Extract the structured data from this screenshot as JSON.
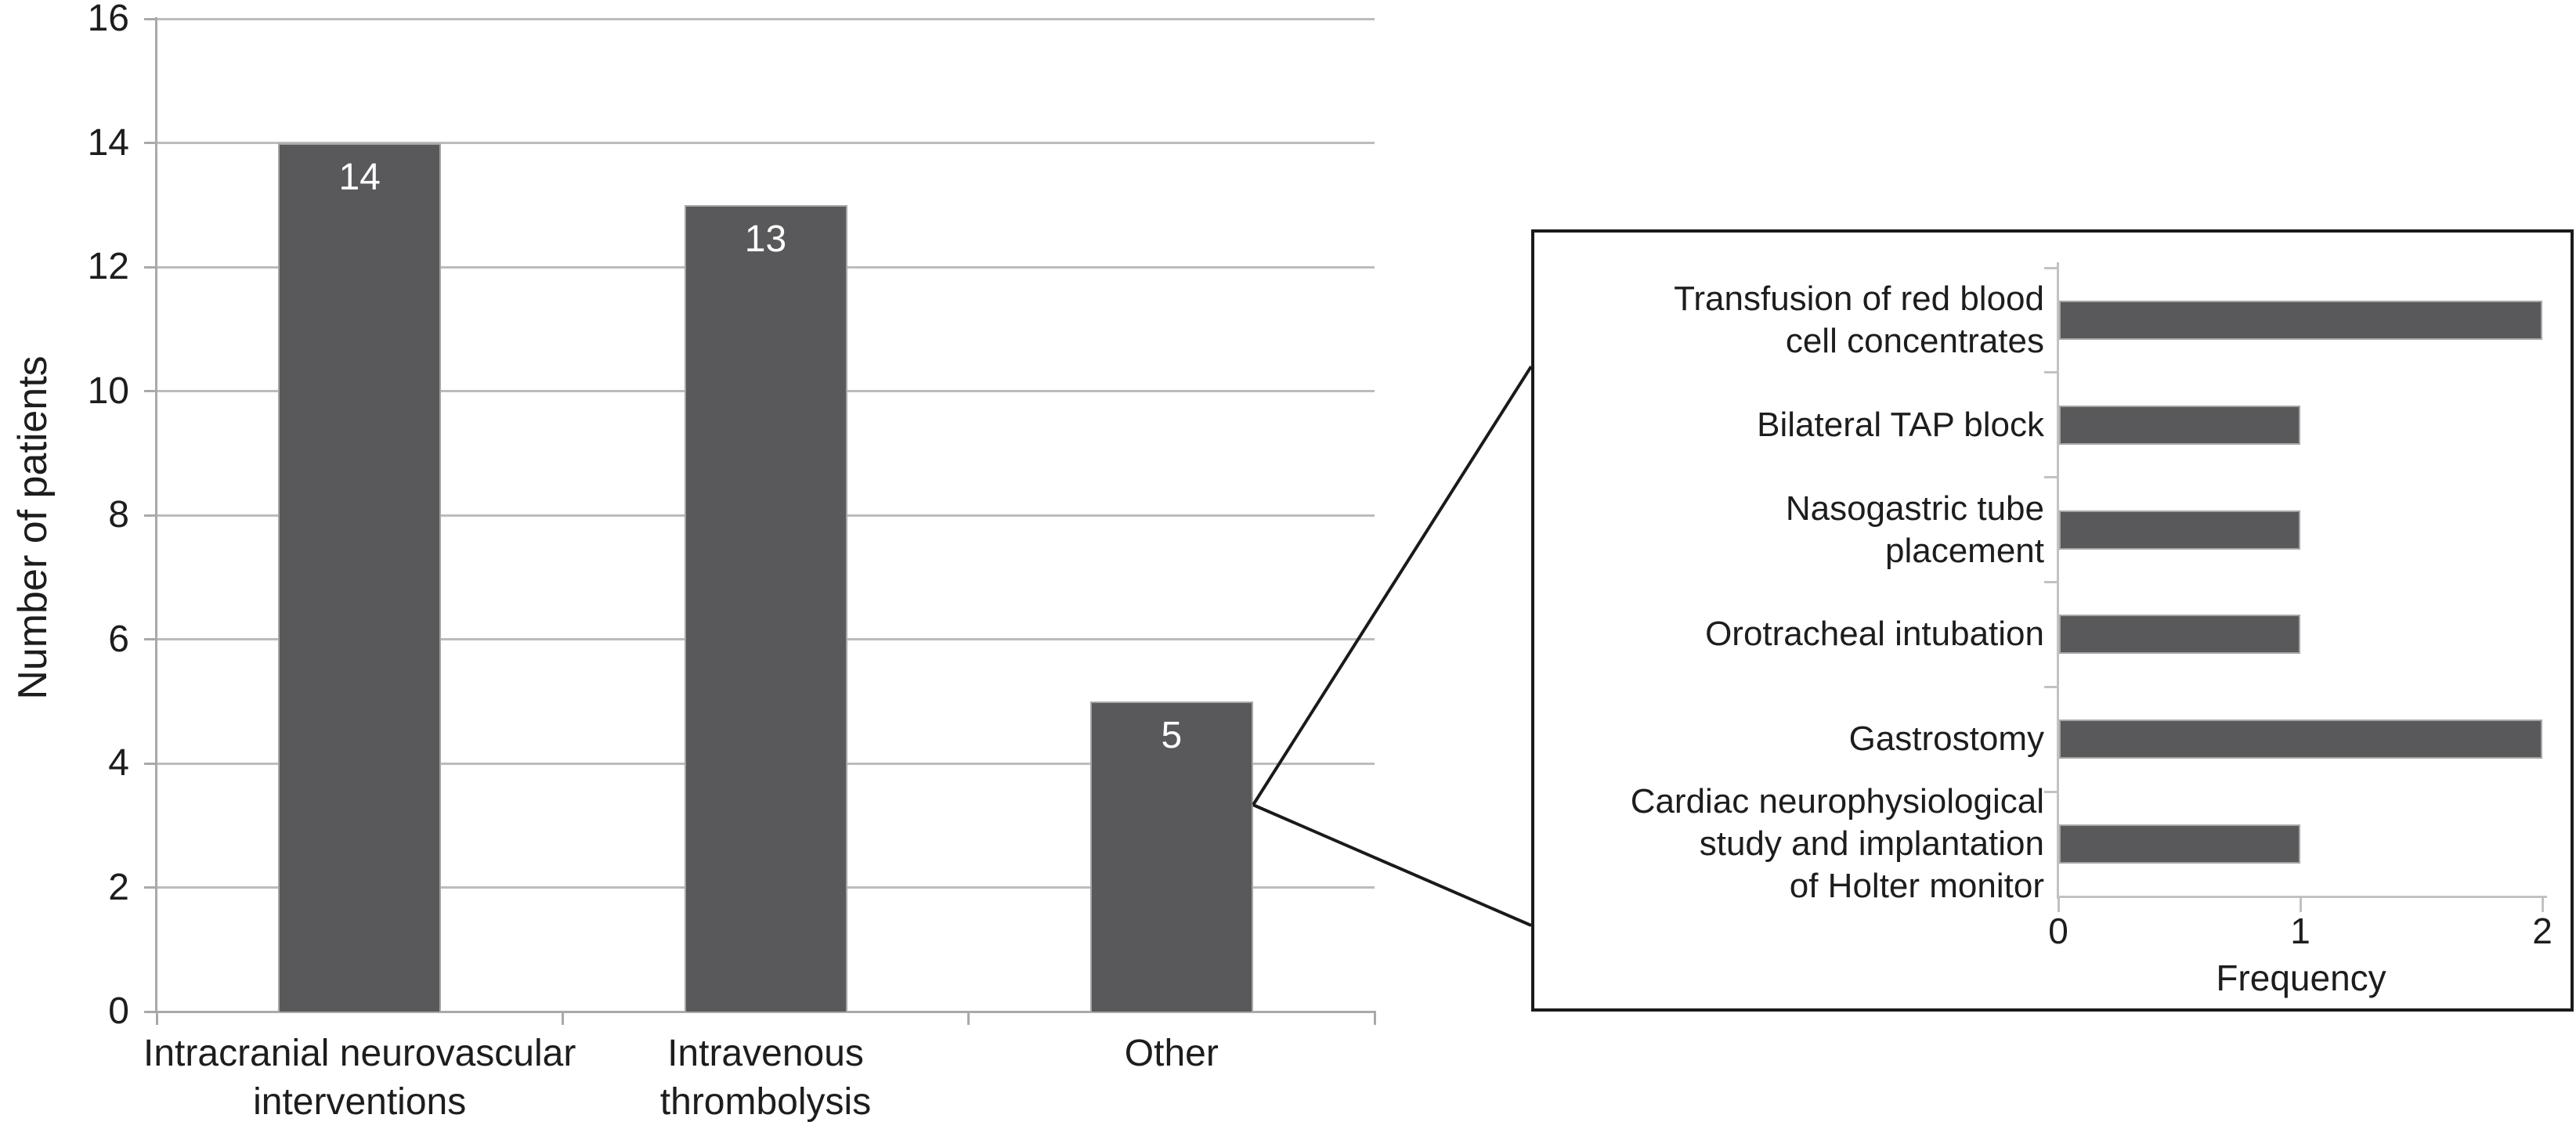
{
  "figure": {
    "background": "#ffffff",
    "text_color": "#1d1d1d",
    "bar_color": "#59595b",
    "bar_border_color": "#a6a6a6",
    "gridline_color": "#bcbcbc",
    "axis_color": "#a9a9a9",
    "inset_axis_color": "#c2c2c2",
    "callout_color": "#1a1a1a",
    "value_label_color": "#ffffff"
  },
  "chart_data": [
    {
      "id": "main",
      "type": "bar",
      "orientation": "vertical",
      "categories": [
        "Intracranial neurovascular interventions",
        "Intravenous thrombolysis",
        "Other"
      ],
      "category_lines": [
        [
          "Intracranial neurovascular",
          "interventions"
        ],
        [
          "Intravenous",
          "thrombolysis"
        ],
        [
          "Other"
        ]
      ],
      "values": [
        14,
        13,
        5
      ],
      "bar_labels": [
        "14",
        "13",
        "5"
      ],
      "xlabel": "",
      "ylabel": "Number of patients",
      "ylim": [
        0,
        16
      ],
      "yticks": [
        "0",
        "2",
        "4",
        "6",
        "8",
        "10",
        "12",
        "14",
        "16"
      ],
      "grid": true,
      "legend": false
    },
    {
      "id": "inset",
      "type": "bar",
      "orientation": "horizontal",
      "categories": [
        "Transfusion of red blood cell concentrates",
        "Bilateral TAP block",
        "Nasogastric tube placement",
        "Orotracheal intubation",
        "Gastrostomy",
        "Cardiac neurophysiological study and implantation of Holter monitor"
      ],
      "category_lines": [
        [
          "Transfusion of red blood",
          "cell concentrates"
        ],
        [
          "Bilateral TAP block"
        ],
        [
          "Nasogastric tube",
          "placement"
        ],
        [
          "Orotracheal intubation"
        ],
        [
          "Gastrostomy"
        ],
        [
          "Cardiac neurophysiological",
          "study and implantation",
          "of Holter monitor"
        ]
      ],
      "values": [
        2,
        1,
        1,
        1,
        2,
        1
      ],
      "xlabel": "Frequency",
      "xlim": [
        0,
        2
      ],
      "xticks": [
        "0",
        "1",
        "2"
      ],
      "grid": false,
      "legend": false
    }
  ]
}
